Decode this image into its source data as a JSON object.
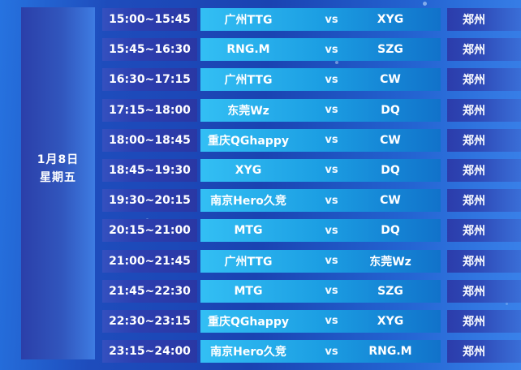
{
  "date_panel": {
    "date": "1月8日",
    "weekday": "星期五"
  },
  "schedule": {
    "rows": [
      {
        "time": "15:00~15:45",
        "team1": "广州TTG",
        "vs": "vs",
        "team2": "XYG",
        "location": "郑州"
      },
      {
        "time": "15:45~16:30",
        "team1": "RNG.M",
        "vs": "vs",
        "team2": "SZG",
        "location": "郑州"
      },
      {
        "time": "16:30~17:15",
        "team1": "广州TTG",
        "vs": "vs",
        "team2": "CW",
        "location": "郑州"
      },
      {
        "time": "17:15~18:00",
        "team1": "东莞Wz",
        "vs": "vs",
        "team2": "DQ",
        "location": "郑州"
      },
      {
        "time": "18:00~18:45",
        "team1": "重庆QGhappy",
        "vs": "vs",
        "team2": "CW",
        "location": "郑州"
      },
      {
        "time": "18:45~19:30",
        "team1": "XYG",
        "vs": "vs",
        "team2": "DQ",
        "location": "郑州"
      },
      {
        "time": "19:30~20:15",
        "team1": "南京Hero久竞",
        "vs": "vs",
        "team2": "CW",
        "location": "郑州"
      },
      {
        "time": "20:15~21:00",
        "team1": "MTG",
        "vs": "vs",
        "team2": "DQ",
        "location": "郑州"
      },
      {
        "time": "21:00~21:45",
        "team1": "广州TTG",
        "vs": "vs",
        "team2": "东莞Wz",
        "location": "郑州"
      },
      {
        "time": "21:45~22:30",
        "team1": "MTG",
        "vs": "vs",
        "team2": "SZG",
        "location": "郑州"
      },
      {
        "time": "22:30~23:15",
        "team1": "重庆QGhappy",
        "vs": "vs",
        "team2": "XYG",
        "location": "郑州"
      },
      {
        "time": "23:15~24:00",
        "team1": "南京Hero久竞",
        "vs": "vs",
        "team2": "RNG.M",
        "location": "郑州"
      }
    ]
  },
  "colors": {
    "background_bright": "#2673e0",
    "background_dark": "#1a43b2",
    "date_column_left": "#2b3fa9",
    "date_column_right": "#3e7ce2",
    "time_cell": "#2c3fb0",
    "team_cell_left": "#33bff4",
    "team_cell_right": "#1172ca",
    "location_cell_left": "#2b3cab",
    "location_cell_right": "#3a6fd8",
    "text": "#ffffff"
  }
}
